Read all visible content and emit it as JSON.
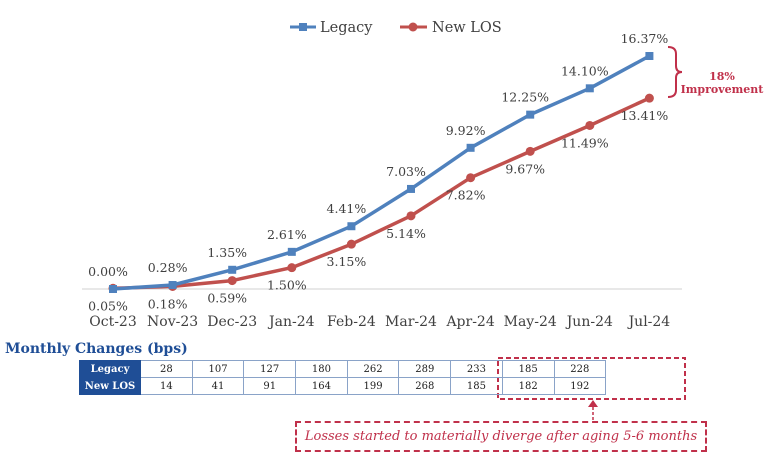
{
  "chart_data": {
    "type": "line",
    "categories": [
      "Oct-23",
      "Nov-23",
      "Dec-23",
      "Jan-24",
      "Feb-24",
      "Mar-24",
      "Apr-24",
      "May-24",
      "Jun-24",
      "Jul-24"
    ],
    "series": [
      {
        "name": "Legacy",
        "values": [
          0.0,
          0.28,
          1.35,
          2.61,
          4.41,
          7.03,
          9.92,
          12.25,
          14.1,
          16.37
        ],
        "labels": [
          "0.00%",
          "0.28%",
          "1.35%",
          "2.61%",
          "4.41%",
          "7.03%",
          "9.92%",
          "12.25%",
          "14.10%",
          "16.37%"
        ],
        "color": "#4f81bd",
        "marker": "square"
      },
      {
        "name": "New LOS",
        "values": [
          0.05,
          0.18,
          0.59,
          1.5,
          3.15,
          5.14,
          7.82,
          9.67,
          11.49,
          13.41
        ],
        "labels": [
          "0.05%",
          "0.18%",
          "0.59%",
          "1.50%",
          "3.15%",
          "5.14%",
          "7.82%",
          "9.67%",
          "11.49%",
          "13.41%"
        ],
        "color": "#c0504d",
        "marker": "circle"
      }
    ],
    "legend_position": "top",
    "grid": false,
    "ylim": [
      0,
      17
    ],
    "annotation": {
      "line1": "18%",
      "line2": "Improvement",
      "color": "#c0304a"
    }
  },
  "table": {
    "title": "Monthly Changes (bps)",
    "rows": [
      {
        "label": "Legacy",
        "values": [
          "28",
          "107",
          "127",
          "180",
          "262",
          "289",
          "233",
          "185",
          "228"
        ]
      },
      {
        "label": "New LOS",
        "values": [
          "14",
          "41",
          "91",
          "164",
          "199",
          "268",
          "185",
          "182",
          "192"
        ]
      }
    ]
  },
  "note": "Losses started to materially diverge after aging 5-6 months"
}
